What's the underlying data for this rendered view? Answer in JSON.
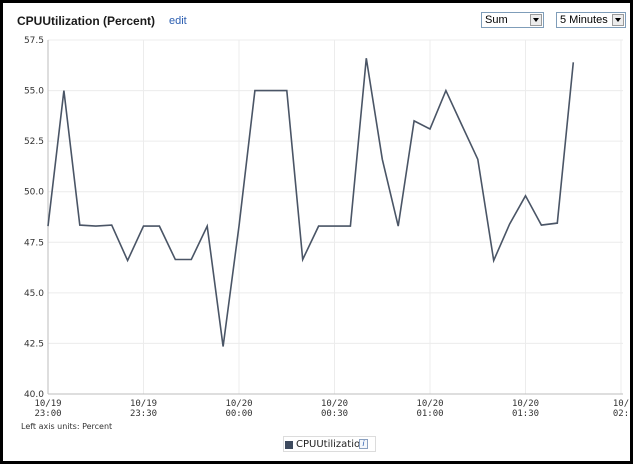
{
  "widget": {
    "title": "CPUUtilization (Percent)",
    "edit_label": "edit",
    "statistic": "Sum",
    "period": "5 Minutes",
    "units_note": "Left axis units: Percent",
    "legend_label": "CPUUtilization",
    "info_icon": "i",
    "line_color": "#4a5566",
    "legend_color": "#3d4a5e",
    "link_color": "#2a5db0"
  },
  "chart_data": {
    "type": "line",
    "ylim": [
      40.0,
      57.5
    ],
    "yticks": [
      "57.5",
      "55.0",
      "52.5",
      "50.0",
      "47.5",
      "45.0",
      "42.5",
      "40.0"
    ],
    "yticks_values": [
      57.5,
      55.0,
      52.5,
      50.0,
      47.5,
      45.0,
      42.5,
      40.0
    ],
    "x_minutes_range": [
      0,
      120
    ],
    "xticks": [
      {
        "date": "10/19",
        "time": "23:00",
        "at": 0
      },
      {
        "date": "10/19",
        "time": "23:30",
        "at": 30
      },
      {
        "date": "10/20",
        "time": "00:00",
        "at": 60
      },
      {
        "date": "10/20",
        "time": "00:30",
        "at": 90
      },
      {
        "date": "10/20",
        "time": "01:00",
        "at": 120
      },
      {
        "date": "10/20",
        "time": "01:30",
        "at": 150
      },
      {
        "date": "10/",
        "time": "02:",
        "at": 180
      }
    ],
    "grid": true,
    "legend_position": "bottom-center",
    "series": [
      {
        "name": "CPUUtilization",
        "x": [
          0,
          5,
          10,
          15,
          20,
          25,
          30,
          35,
          40,
          45,
          50,
          55,
          60,
          65,
          70,
          75,
          80,
          85,
          90,
          95,
          100,
          105,
          110,
          115,
          120,
          125,
          130,
          135,
          140,
          145,
          150,
          155,
          160,
          165
        ],
        "values": [
          48.3,
          55.0,
          48.35,
          48.3,
          48.35,
          46.6,
          48.3,
          48.3,
          46.65,
          46.65,
          48.3,
          42.35,
          48.3,
          55.0,
          55.0,
          55.0,
          46.65,
          48.3,
          48.3,
          48.3,
          56.6,
          51.6,
          48.3,
          53.5,
          53.1,
          55.0,
          53.3,
          51.6,
          46.6,
          48.4,
          49.8,
          48.35,
          48.45,
          56.4
        ]
      }
    ]
  }
}
